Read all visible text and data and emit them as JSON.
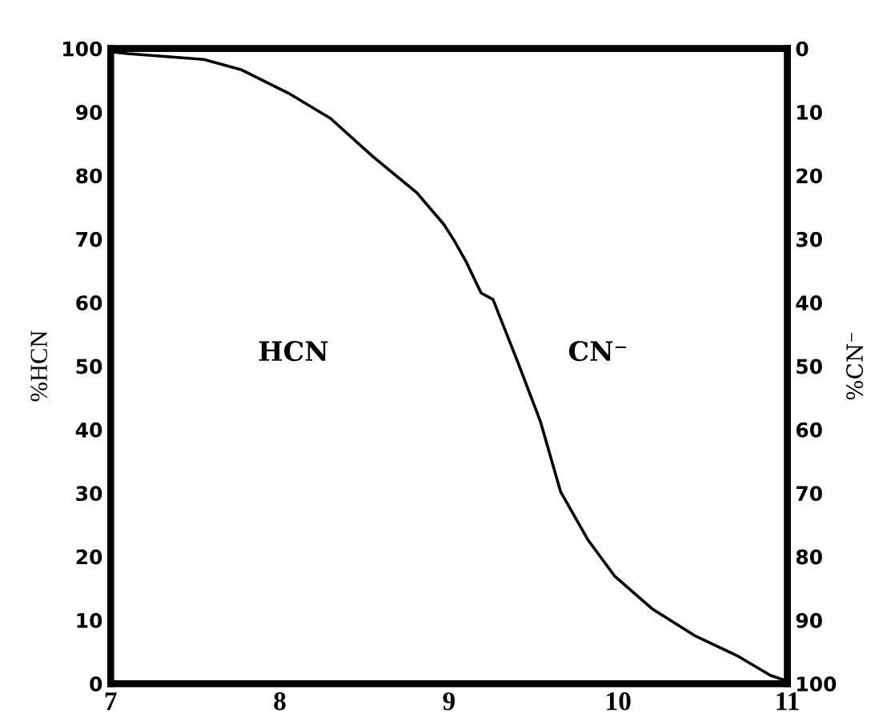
{
  "chart_data": {
    "type": "line",
    "ylabel": "%HCN",
    "y2label": "%CN⁻",
    "xlim": [
      7,
      11
    ],
    "xticks": [
      7,
      8,
      9,
      10,
      11
    ],
    "ylim": [
      0,
      100
    ],
    "yticks": [
      0,
      10,
      20,
      30,
      40,
      50,
      60,
      70,
      80,
      90,
      100
    ],
    "y2lim": [
      100,
      0
    ],
    "y2ticks": [
      0,
      10,
      20,
      30,
      40,
      50,
      60,
      70,
      80,
      90,
      100
    ],
    "series": [
      {
        "color": "#000000",
        "x": [
          7.0,
          7.1,
          7.55,
          7.77,
          8.05,
          8.3,
          8.55,
          8.81,
          8.97,
          9.03,
          9.1,
          9.19,
          9.26,
          9.41,
          9.54,
          9.66,
          9.82,
          9.98,
          10.2,
          10.45,
          10.71,
          10.9,
          10.99
        ],
        "values": [
          99.5,
          99.2,
          98.3,
          96.7,
          93,
          89,
          83,
          77.3,
          72.3,
          69.8,
          66.5,
          61.5,
          60.5,
          50.4,
          41.3,
          30.2,
          22.7,
          16.9,
          11.8,
          7.6,
          4.3,
          1.3,
          0.5
        ]
      }
    ],
    "annotations": [
      "HCN",
      "CN⁻"
    ],
    "grid": false,
    "legend": false,
    "marker": "none",
    "line_style": "solid"
  }
}
